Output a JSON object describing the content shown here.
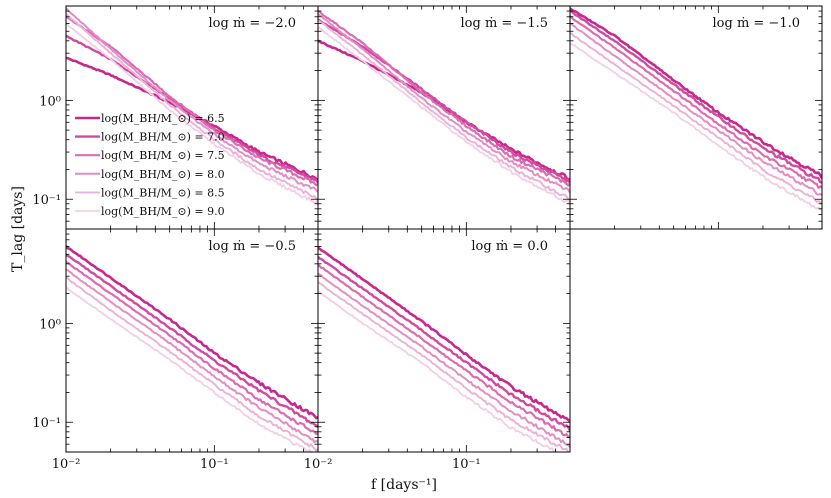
{
  "chart_data": {
    "type": "line",
    "xlabel": "f [days⁻¹]",
    "ylabel": "T_lag [days]",
    "xscale": "log",
    "yscale": "log",
    "xlim": [
      0.01,
      0.5
    ],
    "ylim": [
      0.05,
      9
    ],
    "x_tick_labels": [
      "10⁻²",
      "10⁻¹"
    ],
    "y_tick_labels": [
      "10⁻¹",
      "10⁰"
    ],
    "legend_location": "left, inside top-left panel",
    "series_names": [
      "log(M_BH/M_⊙) = 6.5",
      "log(M_BH/M_⊙) = 7.0",
      "log(M_BH/M_⊙) = 7.5",
      "log(M_BH/M_⊙) = 8.0",
      "log(M_BH/M_⊙) = 8.5",
      "log(M_BH/M_⊙) = 9.0"
    ],
    "series_colors": [
      "#c7288e",
      "#d24aa0",
      "#dc6cb2",
      "#e48dc4",
      "#ecb0d6",
      "#f3cfe6"
    ],
    "panels": [
      {
        "title": "log ṁ = −2.0",
        "series": [
          {
            "name": "log(M_BH/M_⊙) = 6.5",
            "x": [
              0.01,
              0.02,
              0.05,
              0.1,
              0.2,
              0.5
            ],
            "y": [
              2.7,
              1.8,
              0.95,
              0.55,
              0.3,
              0.16
            ]
          },
          {
            "name": "log(M_BH/M_⊙) = 7.0",
            "x": [
              0.01,
              0.02,
              0.05,
              0.1,
              0.2,
              0.5
            ],
            "y": [
              4.5,
              2.6,
              1.05,
              0.52,
              0.28,
              0.15
            ]
          },
          {
            "name": "log(M_BH/M_⊙) = 7.5",
            "x": [
              0.01,
              0.02,
              0.05,
              0.1,
              0.2,
              0.5
            ],
            "y": [
              7.0,
              3.5,
              1.1,
              0.5,
              0.26,
              0.14
            ]
          },
          {
            "name": "log(M_BH/M_⊙) = 8.0",
            "x": [
              0.01,
              0.02,
              0.05,
              0.1,
              0.2,
              0.5
            ],
            "y": [
              8.5,
              3.3,
              1.0,
              0.45,
              0.23,
              0.12
            ]
          },
          {
            "name": "log(M_BH/M_⊙) = 8.5",
            "x": [
              0.01,
              0.02,
              0.05,
              0.1,
              0.2,
              0.5
            ],
            "y": [
              7.5,
              3.0,
              0.9,
              0.4,
              0.2,
              0.1
            ]
          },
          {
            "name": "log(M_BH/M_⊙) = 9.0",
            "x": [
              0.01,
              0.02,
              0.05,
              0.1,
              0.2,
              0.5
            ],
            "y": [
              6.0,
              2.6,
              0.8,
              0.36,
              0.18,
              0.09
            ]
          }
        ]
      },
      {
        "title": "log ṁ = −1.5",
        "series": [
          {
            "name": "log(M_BH/M_⊙) = 6.5",
            "x": [
              0.01,
              0.02,
              0.05,
              0.1,
              0.2,
              0.5
            ],
            "y": [
              4.0,
              2.5,
              1.2,
              0.6,
              0.32,
              0.16
            ]
          },
          {
            "name": "log(M_BH/M_⊙) = 7.0",
            "x": [
              0.01,
              0.02,
              0.05,
              0.1,
              0.2,
              0.5
            ],
            "y": [
              6.5,
              3.5,
              1.3,
              0.6,
              0.3,
              0.15
            ]
          },
          {
            "name": "log(M_BH/M_⊙) = 7.5",
            "x": [
              0.01,
              0.02,
              0.05,
              0.1,
              0.2,
              0.5
            ],
            "y": [
              8.0,
              3.8,
              1.2,
              0.55,
              0.27,
              0.14
            ]
          },
          {
            "name": "log(M_BH/M_⊙) = 8.0",
            "x": [
              0.01,
              0.02,
              0.05,
              0.1,
              0.2,
              0.5
            ],
            "y": [
              7.5,
              3.3,
              1.05,
              0.48,
              0.24,
              0.12
            ]
          },
          {
            "name": "log(M_BH/M_⊙) = 8.5",
            "x": [
              0.01,
              0.02,
              0.05,
              0.1,
              0.2,
              0.5
            ],
            "y": [
              6.5,
              2.9,
              0.95,
              0.42,
              0.21,
              0.1
            ]
          },
          {
            "name": "log(M_BH/M_⊙) = 9.0",
            "x": [
              0.01,
              0.02,
              0.05,
              0.1,
              0.2,
              0.5
            ],
            "y": [
              5.5,
              2.5,
              0.85,
              0.38,
              0.19,
              0.09
            ]
          }
        ]
      },
      {
        "title": "log ṁ = −1.0",
        "series": [
          {
            "name": "log(M_BH/M_⊙) = 6.5",
            "x": [
              0.01,
              0.02,
              0.05,
              0.1,
              0.2,
              0.5
            ],
            "y": [
              8.5,
              4.5,
              1.6,
              0.75,
              0.38,
              0.17
            ]
          },
          {
            "name": "log(M_BH/M_⊙) = 7.0",
            "x": [
              0.01,
              0.02,
              0.05,
              0.1,
              0.2,
              0.5
            ],
            "y": [
              8.0,
              4.0,
              1.45,
              0.68,
              0.33,
              0.15
            ]
          },
          {
            "name": "log(M_BH/M_⊙) = 7.5",
            "x": [
              0.01,
              0.02,
              0.05,
              0.1,
              0.2,
              0.5
            ],
            "y": [
              7.0,
              3.4,
              1.25,
              0.58,
              0.28,
              0.13
            ]
          },
          {
            "name": "log(M_BH/M_⊙) = 8.0",
            "x": [
              0.01,
              0.02,
              0.05,
              0.1,
              0.2,
              0.5
            ],
            "y": [
              6.0,
              2.8,
              1.05,
              0.5,
              0.24,
              0.11
            ]
          },
          {
            "name": "log(M_BH/M_⊙) = 8.5",
            "x": [
              0.01,
              0.02,
              0.05,
              0.1,
              0.2,
              0.5
            ],
            "y": [
              4.8,
              2.3,
              0.88,
              0.42,
              0.2,
              0.09
            ]
          },
          {
            "name": "log(M_BH/M_⊙) = 9.0",
            "x": [
              0.01,
              0.02,
              0.05,
              0.1,
              0.2,
              0.5
            ],
            "y": [
              3.8,
              1.9,
              0.75,
              0.35,
              0.17,
              0.075
            ]
          }
        ]
      },
      {
        "title": "log ṁ = −0.5",
        "series": [
          {
            "name": "log(M_BH/M_⊙) = 6.5",
            "x": [
              0.01,
              0.02,
              0.05,
              0.1,
              0.2,
              0.5
            ],
            "y": [
              6.0,
              2.9,
              1.1,
              0.5,
              0.25,
              0.11
            ]
          },
          {
            "name": "log(M_BH/M_⊙) = 7.0",
            "x": [
              0.01,
              0.02,
              0.05,
              0.1,
              0.2,
              0.5
            ],
            "y": [
              5.0,
              2.4,
              0.9,
              0.42,
              0.21,
              0.09
            ]
          },
          {
            "name": "log(M_BH/M_⊙) = 7.5",
            "x": [
              0.01,
              0.02,
              0.05,
              0.1,
              0.2,
              0.5
            ],
            "y": [
              4.2,
              2.0,
              0.76,
              0.35,
              0.17,
              0.075
            ]
          },
          {
            "name": "log(M_BH/M_⊙) = 8.0",
            "x": [
              0.01,
              0.02,
              0.05,
              0.1,
              0.2,
              0.5
            ],
            "y": [
              3.5,
              1.65,
              0.63,
              0.29,
              0.14,
              0.062
            ]
          },
          {
            "name": "log(M_BH/M_⊙) = 8.5",
            "x": [
              0.01,
              0.02,
              0.05,
              0.1,
              0.2,
              0.5
            ],
            "y": [
              2.9,
              1.35,
              0.52,
              0.24,
              0.115,
              0.052
            ]
          },
          {
            "name": "log(M_BH/M_⊙) = 9.0",
            "x": [
              0.01,
              0.02,
              0.05,
              0.1,
              0.2,
              0.5
            ],
            "y": [
              2.3,
              1.1,
              0.43,
              0.2,
              0.095,
              0.045
            ]
          }
        ]
      },
      {
        "title": "log ṁ = 0.0",
        "series": [
          {
            "name": "log(M_BH/M_⊙) = 6.5",
            "x": [
              0.01,
              0.02,
              0.05,
              0.1,
              0.2,
              0.5
            ],
            "y": [
              5.8,
              2.8,
              1.05,
              0.48,
              0.23,
              0.1
            ]
          },
          {
            "name": "log(M_BH/M_⊙) = 7.0",
            "x": [
              0.01,
              0.02,
              0.05,
              0.1,
              0.2,
              0.5
            ],
            "y": [
              4.7,
              2.25,
              0.85,
              0.4,
              0.19,
              0.085
            ]
          },
          {
            "name": "log(M_BH/M_⊙) = 7.5",
            "x": [
              0.01,
              0.02,
              0.05,
              0.1,
              0.2,
              0.5
            ],
            "y": [
              3.9,
              1.85,
              0.7,
              0.33,
              0.16,
              0.07
            ]
          },
          {
            "name": "log(M_BH/M_⊙) = 8.0",
            "x": [
              0.01,
              0.02,
              0.05,
              0.1,
              0.2,
              0.5
            ],
            "y": [
              3.2,
              1.5,
              0.58,
              0.27,
              0.13,
              0.058
            ]
          },
          {
            "name": "log(M_BH/M_⊙) = 8.5",
            "x": [
              0.01,
              0.02,
              0.05,
              0.1,
              0.2,
              0.5
            ],
            "y": [
              2.6,
              1.25,
              0.48,
              0.22,
              0.105,
              0.05
            ]
          },
          {
            "name": "log(M_BH/M_⊙) = 9.0",
            "x": [
              0.01,
              0.02,
              0.05,
              0.1,
              0.2,
              0.5
            ],
            "y": [
              2.1,
              1.0,
              0.4,
              0.18,
              0.088,
              0.042
            ]
          }
        ]
      }
    ]
  }
}
